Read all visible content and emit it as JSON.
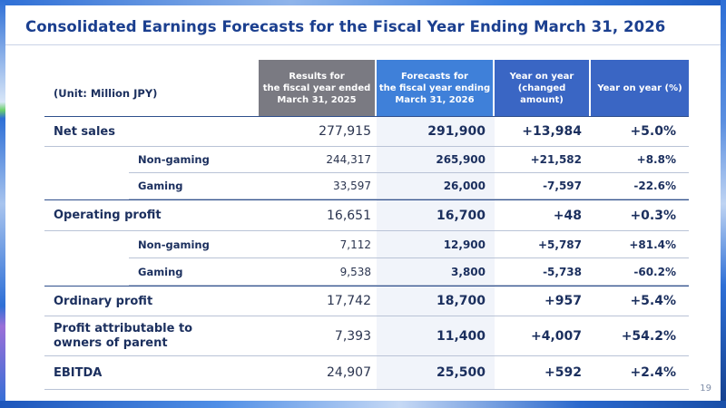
{
  "page": {
    "title": "Consolidated Earnings Forecasts for the Fiscal Year Ending March 31, 2026",
    "page_number": "19"
  },
  "table": {
    "unit_label": "(Unit: Million JPY)",
    "columns": {
      "results": "Results for\nthe fiscal year ended\nMarch 31, 2025",
      "forecast": "Forecasts for\nthe fiscal year ending\nMarch 31, 2026",
      "yoy_amount": "Year on year\n(changed\namount)",
      "yoy_percent": "Year on year (%)"
    },
    "rows": [
      {
        "label": "Net sales",
        "results": "277,915",
        "forecast": "291,900",
        "yoy_amount": "+13,984",
        "yoy_percent": "+5.0%"
      },
      {
        "label": "Non-gaming",
        "results": "244,317",
        "forecast": "265,900",
        "yoy_amount": "+21,582",
        "yoy_percent": "+8.8%"
      },
      {
        "label": "Gaming",
        "results": "33,597",
        "forecast": "26,000",
        "yoy_amount": "-7,597",
        "yoy_percent": "-22.6%"
      },
      {
        "label": "Operating profit",
        "results": "16,651",
        "forecast": "16,700",
        "yoy_amount": "+48",
        "yoy_percent": "+0.3%"
      },
      {
        "label": "Non-gaming",
        "results": "7,112",
        "forecast": "12,900",
        "yoy_amount": "+5,787",
        "yoy_percent": "+81.4%"
      },
      {
        "label": "Gaming",
        "results": "9,538",
        "forecast": "3,800",
        "yoy_amount": "-5,738",
        "yoy_percent": "-60.2%"
      },
      {
        "label": "Ordinary profit",
        "results": "17,742",
        "forecast": "18,700",
        "yoy_amount": "+957",
        "yoy_percent": "+5.4%"
      },
      {
        "label": "Profit attributable to\nowners of parent",
        "results": "7,393",
        "forecast": "11,400",
        "yoy_amount": "+4,007",
        "yoy_percent": "+54.2%"
      },
      {
        "label": "EBITDA",
        "results": "24,907",
        "forecast": "25,500",
        "yoy_amount": "+592",
        "yoy_percent": "+2.4%"
      }
    ]
  },
  "colors": {
    "title": "#1b3f8f",
    "header_results": "#7a7a82",
    "header_forecast": "#3f80d9",
    "header_yoy": "#3a66c4",
    "frame": "#1a4fa8"
  }
}
